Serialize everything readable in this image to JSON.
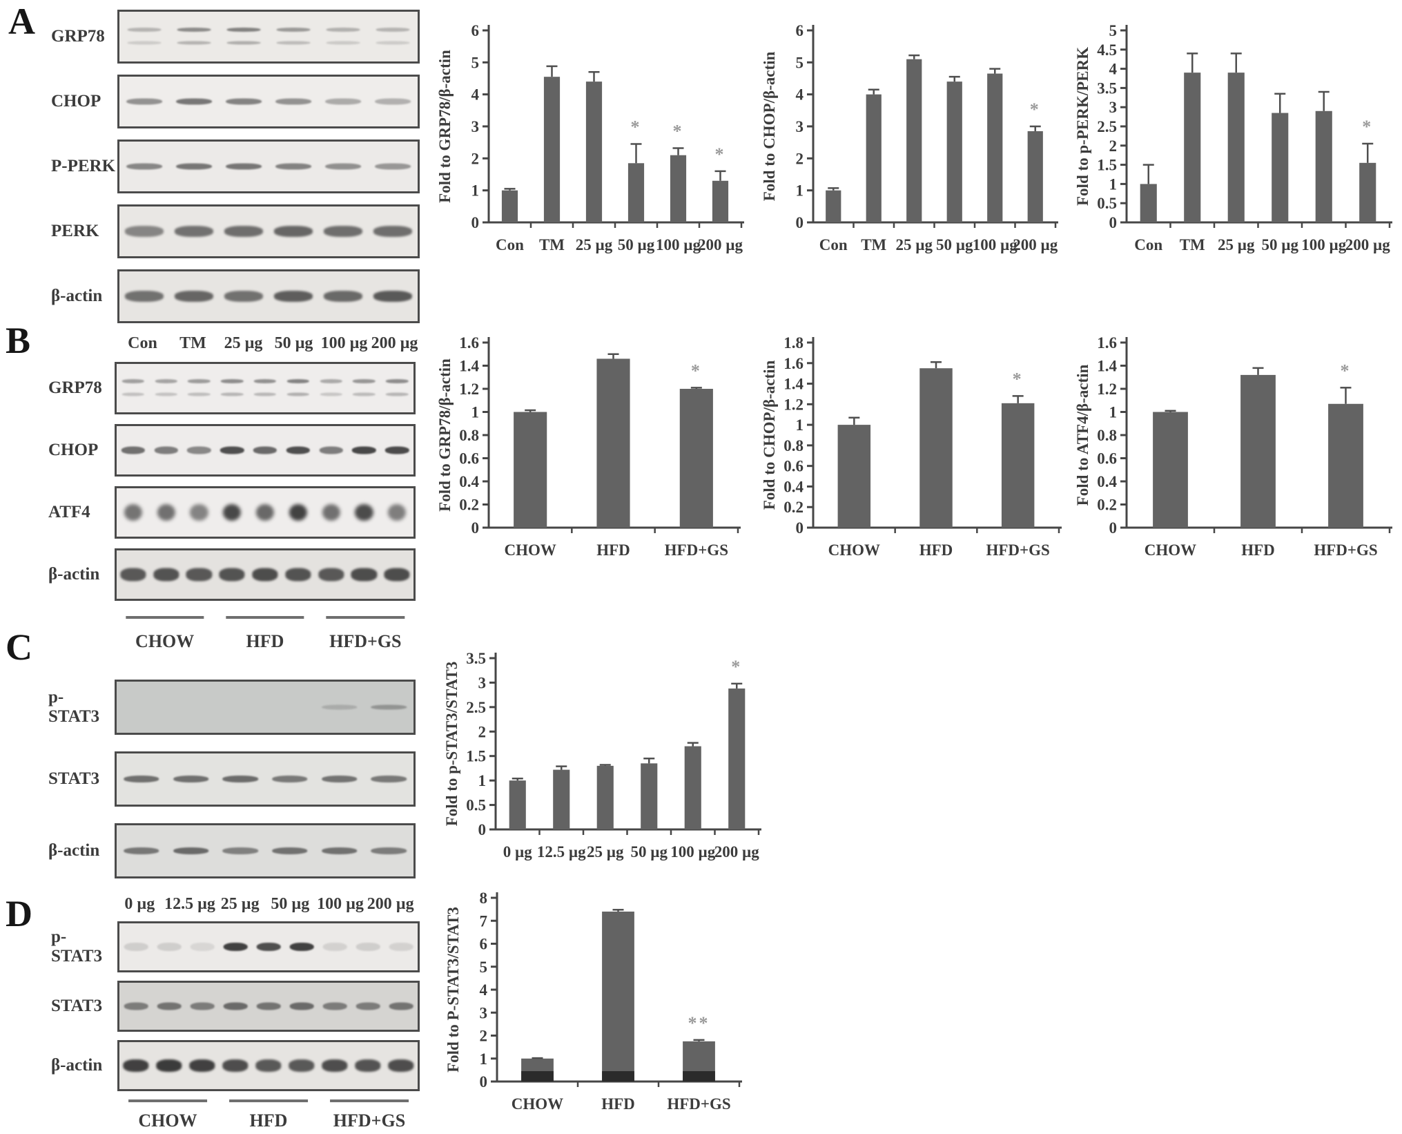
{
  "style": {
    "bar_color": "#636363",
    "bar_dark": "#2b2b2b",
    "axis_color": "#464646",
    "text_color": "#3c3c3c",
    "error_color": "#4f4f4f",
    "star_color": "#9a9a9a",
    "blot_border": "#4b4b4b",
    "band_ink": "35,35,35"
  },
  "figure": {
    "panels": [
      {
        "letter": "A",
        "blots": {
          "rows": [
            {
              "label": "GRP78",
              "style": "double",
              "bg": "#eceae7",
              "lanes": [
                0.28,
                0.5,
                0.55,
                0.42,
                0.3,
                0.28
              ]
            },
            {
              "label": "CHOP",
              "style": "band",
              "bg": "#efedeb",
              "lanes": [
                0.45,
                0.58,
                0.52,
                0.45,
                0.33,
                0.3
              ]
            },
            {
              "label": "P-PERK",
              "style": "band",
              "bg": "#eceae8",
              "lanes": [
                0.5,
                0.58,
                0.58,
                0.52,
                0.45,
                0.42
              ]
            },
            {
              "label": "PERK",
              "style": "thick",
              "bg": "#e9e7e4",
              "lanes": [
                0.5,
                0.6,
                0.62,
                0.66,
                0.62,
                0.62
              ]
            },
            {
              "label": "β-actin",
              "style": "thick",
              "bg": "#e7e5e2",
              "lanes": [
                0.6,
                0.66,
                0.6,
                0.7,
                0.64,
                0.72
              ]
            }
          ],
          "lane_labels": [
            "Con",
            "TM",
            "25 µg",
            "50 µg",
            "100 µg",
            "200 µg"
          ],
          "groups": []
        }
      },
      {
        "letter": "B",
        "blots": {
          "rows": [
            {
              "label": "GRP78",
              "style": "double",
              "bg": "#efedec",
              "lanes": [
                0.4,
                0.38,
                0.42,
                0.5,
                0.48,
                0.55,
                0.35,
                0.45,
                0.5
              ]
            },
            {
              "label": "CHOP",
              "style": "band",
              "bg": "#eeeceb",
              "h": 11,
              "lanes": [
                0.62,
                0.55,
                0.5,
                0.78,
                0.65,
                0.78,
                0.55,
                0.82,
                0.8
              ]
            },
            {
              "label": "ATF4",
              "style": "blob",
              "bg": "#efedec",
              "lanes": [
                0.6,
                0.62,
                0.52,
                0.82,
                0.66,
                0.85,
                0.62,
                0.8,
                0.55
              ]
            },
            {
              "label": "β-actin",
              "style": "thick",
              "bg": "#e4e2df",
              "h": 19,
              "lanes": [
                0.72,
                0.75,
                0.72,
                0.75,
                0.78,
                0.75,
                0.72,
                0.78,
                0.78
              ]
            }
          ],
          "lane_labels": [],
          "groups": [
            {
              "label": "CHOW"
            },
            {
              "label": "HFD"
            },
            {
              "label": "HFD+GS"
            }
          ]
        }
      },
      {
        "letter": "C",
        "blots": {
          "rows": [
            {
              "label": "p-STAT3",
              "style": "band",
              "bg": "#c8cac8",
              "h": 7,
              "lanes": [
                0,
                0,
                0,
                0,
                0.18,
                0.32
              ]
            },
            {
              "label": "STAT3",
              "style": "band",
              "bg": "#e3e3e0",
              "h": 10,
              "lanes": [
                0.6,
                0.6,
                0.62,
                0.55,
                0.58,
                0.55
              ]
            },
            {
              "label": "β-actin",
              "style": "band",
              "bg": "#dddddb",
              "h": 10,
              "lanes": [
                0.55,
                0.62,
                0.5,
                0.58,
                0.58,
                0.52
              ]
            }
          ],
          "lane_labels": [
            "0 µg",
            "12.5 µg",
            "25 µg",
            "50 µg",
            "100 µg",
            "200 µg"
          ],
          "groups": []
        }
      },
      {
        "letter": "D",
        "blots": {
          "rows": [
            {
              "label": "p-STAT3",
              "style": "band",
              "bg": "#eceae8",
              "h": 12,
              "lanes": [
                0.14,
                0.14,
                0.1,
                0.85,
                0.78,
                0.85,
                0.12,
                0.14,
                0.12
              ]
            },
            {
              "label": "STAT3",
              "style": "band",
              "bg": "#d5d4d1",
              "h": 11,
              "lanes": [
                0.5,
                0.55,
                0.5,
                0.6,
                0.55,
                0.6,
                0.5,
                0.5,
                0.55
              ]
            },
            {
              "label": "β-actin",
              "style": "thick",
              "bg": "#e6e4e1",
              "h": 18,
              "lanes": [
                0.85,
                0.88,
                0.85,
                0.78,
                0.72,
                0.72,
                0.78,
                0.75,
                0.78
              ]
            }
          ],
          "lane_labels": [],
          "groups": [
            {
              "label": "CHOW"
            },
            {
              "label": "HFD"
            },
            {
              "label": "HFD+GS"
            }
          ]
        }
      }
    ]
  },
  "chart_data": [
    {
      "id": "A-GRP78",
      "type": "bar",
      "panel": "A",
      "title": "",
      "xlabel": "",
      "ylabel": "Fold to GRP78/β-actin",
      "categories": [
        "Con",
        "TM",
        "25 µg",
        "50 µg",
        "100 µg",
        "200 µg"
      ],
      "values": [
        1.0,
        4.55,
        4.4,
        1.85,
        2.1,
        1.3
      ],
      "errors": [
        0.05,
        0.33,
        0.3,
        0.6,
        0.22,
        0.3
      ],
      "sig": [
        "",
        "",
        "",
        "*",
        "*",
        "*"
      ],
      "ylim": [
        0,
        6
      ],
      "ystep": 1,
      "grid": false,
      "legend": "none"
    },
    {
      "id": "A-CHOP",
      "type": "bar",
      "panel": "A",
      "title": "",
      "xlabel": "",
      "ylabel": "Fold to CHOP/β-actin",
      "categories": [
        "Con",
        "TM",
        "25 µg",
        "50 µg",
        "100 µg",
        "200 µg"
      ],
      "values": [
        1.0,
        4.0,
        5.1,
        4.4,
        4.65,
        2.85
      ],
      "errors": [
        0.07,
        0.15,
        0.12,
        0.15,
        0.15,
        0.15
      ],
      "sig": [
        "",
        "",
        "",
        "",
        "",
        "*"
      ],
      "ylim": [
        0,
        6
      ],
      "ystep": 1,
      "grid": false,
      "legend": "none"
    },
    {
      "id": "A-pPERK",
      "type": "bar",
      "panel": "A",
      "title": "",
      "xlabel": "",
      "ylabel": "Fold to p-PERK/PERK",
      "categories": [
        "Con",
        "TM",
        "25 µg",
        "50 µg",
        "100 µg",
        "200 µg"
      ],
      "values": [
        1.0,
        3.9,
        3.9,
        2.85,
        2.9,
        1.55
      ],
      "errors": [
        0.5,
        0.5,
        0.5,
        0.5,
        0.5,
        0.5
      ],
      "sig": [
        "",
        "",
        "",
        "",
        "",
        "*"
      ],
      "ylim": [
        0,
        5
      ],
      "ystep": 0.5,
      "grid": false,
      "legend": "none"
    },
    {
      "id": "B-GRP78",
      "type": "bar",
      "panel": "B",
      "title": "",
      "xlabel": "",
      "ylabel": "Fold to GRP78/β-actin",
      "categories": [
        "CHOW",
        "HFD",
        "HFD+GS"
      ],
      "values": [
        1.0,
        1.46,
        1.2
      ],
      "errors": [
        0.015,
        0.04,
        0.01
      ],
      "sig": [
        "",
        "",
        "*"
      ],
      "ylim": [
        0,
        1.6
      ],
      "ystep": 0.2,
      "grid": false,
      "legend": "none"
    },
    {
      "id": "B-CHOP",
      "type": "bar",
      "panel": "B",
      "title": "",
      "xlabel": "",
      "ylabel": "Fold to CHOP/β-actin",
      "categories": [
        "CHOW",
        "HFD",
        "HFD+GS"
      ],
      "values": [
        1.0,
        1.55,
        1.21
      ],
      "errors": [
        0.07,
        0.06,
        0.07
      ],
      "sig": [
        "",
        "",
        "*"
      ],
      "ylim": [
        0,
        1.8
      ],
      "ystep": 0.2,
      "grid": false,
      "legend": "none"
    },
    {
      "id": "B-ATF4",
      "type": "bar",
      "panel": "B",
      "title": "",
      "xlabel": "",
      "ylabel": "Fold to ATF4/β-actin",
      "categories": [
        "CHOW",
        "HFD",
        "HFD+GS"
      ],
      "values": [
        1.0,
        1.32,
        1.07
      ],
      "errors": [
        0.01,
        0.06,
        0.14
      ],
      "sig": [
        "",
        "",
        "*"
      ],
      "ylim": [
        0,
        1.6
      ],
      "ystep": 0.2,
      "grid": false,
      "legend": "none"
    },
    {
      "id": "C-pSTAT3",
      "type": "bar",
      "panel": "C",
      "title": "",
      "xlabel": "",
      "ylabel": "Fold to p-STAT3/STAT3",
      "categories": [
        "0 µg",
        "12.5 µg",
        "25 µg",
        "50 µg",
        "100 µg",
        "200 µg"
      ],
      "values": [
        1.0,
        1.22,
        1.3,
        1.35,
        1.7,
        2.88
      ],
      "errors": [
        0.04,
        0.07,
        0.02,
        0.1,
        0.07,
        0.1
      ],
      "sig": [
        "",
        "",
        "",
        "",
        "",
        "*"
      ],
      "ylim": [
        0,
        3.5
      ],
      "ystep": 0.5,
      "grid": false,
      "legend": "none"
    },
    {
      "id": "D-pSTAT3",
      "type": "bar",
      "panel": "D",
      "title": "",
      "xlabel": "",
      "ylabel": "Fold to P-STAT3/STAT3",
      "categories": [
        "CHOW",
        "HFD",
        "HFD+GS"
      ],
      "values": [
        1.0,
        7.4,
        1.75
      ],
      "errors": [
        0.02,
        0.08,
        0.06
      ],
      "sig": [
        "",
        "",
        "**"
      ],
      "base_values": [
        0.45,
        0.45,
        0.45
      ],
      "ylim": [
        0,
        8
      ],
      "ystep": 1,
      "grid": false,
      "legend": "none"
    }
  ]
}
